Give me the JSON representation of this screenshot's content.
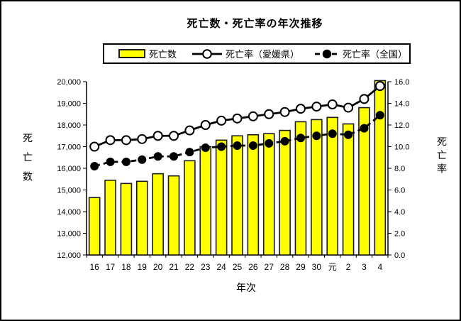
{
  "title": "死亡数・死亡率の年次推移",
  "legend": {
    "deaths_label": "死亡数",
    "ehime_label": "死亡率（愛媛県）",
    "national_label": "死亡率（全国）"
  },
  "axes": {
    "left_title": "死亡数",
    "right_title": "死亡率",
    "x_title": "年次",
    "left_ticks": [
      "20,000",
      "19,000",
      "18,000",
      "17,000",
      "16,000",
      "15,000",
      "14,000",
      "13,000",
      "12,000"
    ],
    "right_ticks": [
      "16.0",
      "14.0",
      "12.0",
      "10.0",
      "8.0",
      "6.0",
      "4.0",
      "2.0",
      "0.0"
    ]
  },
  "colors": {
    "bar_fill": "#FFFF00",
    "bar_border": "#1a1a1a",
    "line": "#000000",
    "background": "#FFFFFF",
    "frame_border": "#000000"
  },
  "chart_data": {
    "type": "bar",
    "title": "死亡数・死亡率の年次推移",
    "xlabel": "年次",
    "ylabel_left": "死亡数",
    "ylabel_right": "死亡率",
    "categories": [
      "16",
      "17",
      "18",
      "19",
      "20",
      "21",
      "22",
      "23",
      "24",
      "25",
      "26",
      "27",
      "28",
      "29",
      "30",
      "元",
      "2",
      "3",
      "4"
    ],
    "series": [
      {
        "name": "死亡数",
        "type": "bar",
        "axis": "left",
        "color": "#FFFF00",
        "values": [
          14650,
          15450,
          15300,
          15400,
          15750,
          15650,
          16350,
          17000,
          17300,
          17500,
          17550,
          17600,
          17750,
          18150,
          18250,
          18350,
          18050,
          18800,
          20050
        ]
      },
      {
        "name": "死亡率（愛媛県）",
        "type": "line",
        "axis": "right",
        "marker": "open-circle",
        "dashed": false,
        "values": [
          10.0,
          10.6,
          10.6,
          10.7,
          11.0,
          11.0,
          11.5,
          12.0,
          12.4,
          12.6,
          12.8,
          13.0,
          13.2,
          13.5,
          13.7,
          13.9,
          13.6,
          14.4,
          15.6
        ]
      },
      {
        "name": "死亡率（全国）",
        "type": "line",
        "axis": "right",
        "marker": "filled-circle",
        "dashed": true,
        "values": [
          8.2,
          8.6,
          8.6,
          8.8,
          9.1,
          9.1,
          9.5,
          9.9,
          10.0,
          10.1,
          10.1,
          10.3,
          10.5,
          10.8,
          11.0,
          11.2,
          11.1,
          11.7,
          12.9
        ]
      }
    ],
    "ylim_left": [
      12000,
      20000
    ],
    "ytick_step_left": 1000,
    "ylim_right": [
      0.0,
      16.0
    ],
    "ytick_step_right": 2.0,
    "grid": false,
    "legend_position": "top"
  }
}
